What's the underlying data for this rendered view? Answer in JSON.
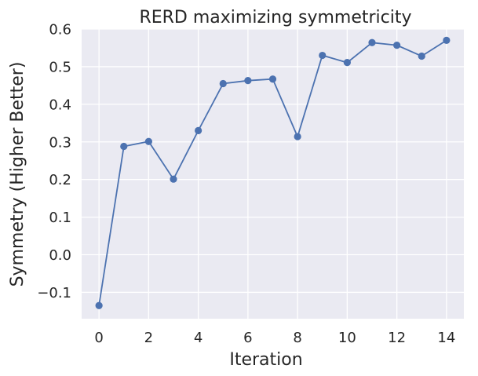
{
  "chart_data": {
    "type": "line",
    "title": "RERD maximizing symmetricity",
    "xlabel": "Iteration",
    "ylabel": "Symmetry (Higher Better)",
    "xlim": [
      -0.7,
      14.7
    ],
    "ylim": [
      -0.17,
      0.6
    ],
    "xticks": [
      0,
      2,
      4,
      6,
      8,
      10,
      12,
      14
    ],
    "yticks": [
      -0.1,
      0.0,
      0.1,
      0.2,
      0.3,
      0.4,
      0.5,
      0.6
    ],
    "ytick_labels": [
      "−0.1",
      "0.0",
      "0.1",
      "0.2",
      "0.3",
      "0.4",
      "0.5",
      "0.6"
    ],
    "grid": true,
    "background": "#eaeaf2",
    "series": [
      {
        "color": "#4c72b0",
        "marker": "circle",
        "x": [
          0,
          1,
          2,
          3,
          4,
          5,
          6,
          7,
          8,
          9,
          10,
          11,
          12,
          13,
          14
        ],
        "y": [
          -0.135,
          0.288,
          0.301,
          0.201,
          0.33,
          0.455,
          0.463,
          0.467,
          0.314,
          0.53,
          0.511,
          0.564,
          0.557,
          0.528,
          0.57
        ]
      }
    ]
  }
}
